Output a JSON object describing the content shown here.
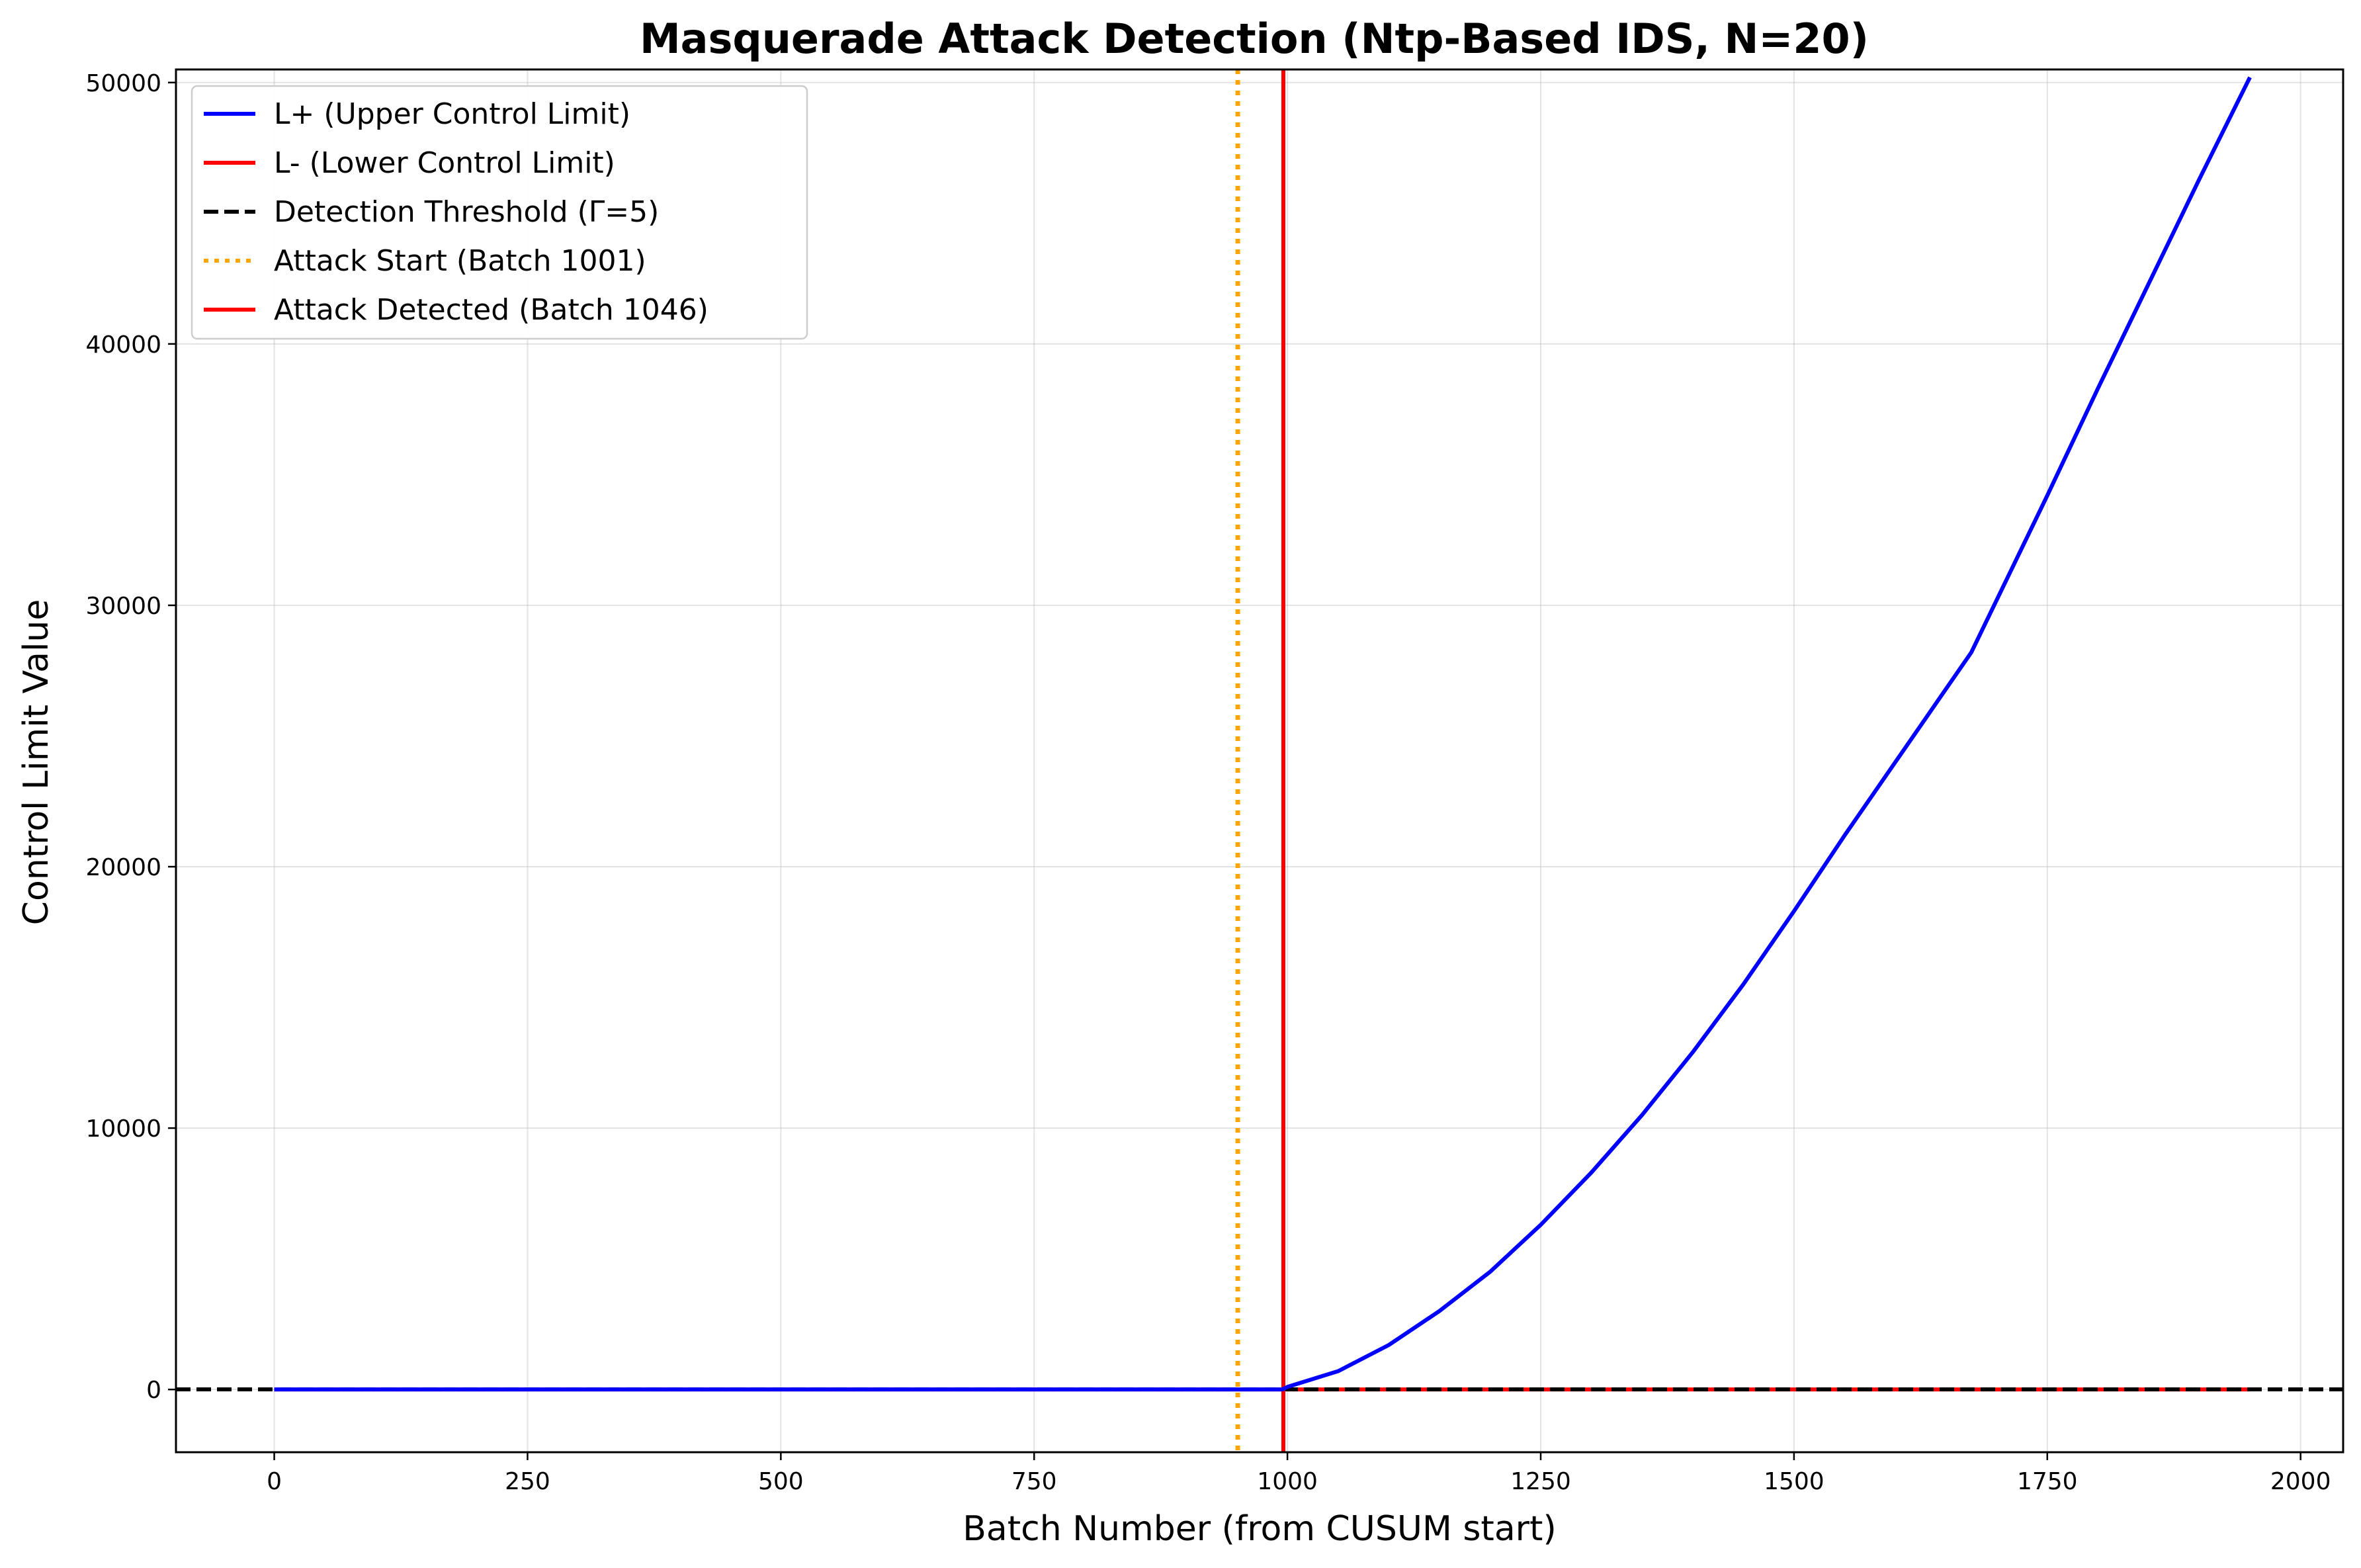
{
  "chart_data": {
    "type": "line",
    "title": "Masquerade Attack Detection (Ntp-Based IDS, N=20)",
    "xlabel": "Batch Number (from CUSUM start)",
    "ylabel": "Control Limit Value",
    "xlim": [
      -97,
      2042
    ],
    "ylim": [
      -2400,
      50500
    ],
    "xticks": [
      0,
      250,
      500,
      750,
      1000,
      1250,
      1500,
      1750,
      2000
    ],
    "yticks": [
      0,
      10000,
      20000,
      30000,
      40000,
      50000
    ],
    "xtick_labels": [
      "0",
      "250",
      "500",
      "750",
      "1000",
      "1250",
      "1500",
      "1750",
      "2000"
    ],
    "ytick_labels": [
      "0",
      "10000",
      "20000",
      "30000",
      "40000",
      "50000"
    ],
    "grid": true,
    "legend_position": "upper-left",
    "series": [
      {
        "name": "L+ (Upper Control Limit)",
        "color": "#0000ff",
        "style": "solid",
        "x": [
          0,
          995,
          1000,
          1050,
          1100,
          1150,
          1200,
          1250,
          1300,
          1350,
          1400,
          1450,
          1500,
          1550,
          1600,
          1650,
          1675,
          1700,
          1750,
          1800,
          1850,
          1900,
          1950
        ],
        "y": [
          0,
          0,
          100,
          700,
          1700,
          3000,
          4500,
          6300,
          8300,
          10500,
          12900,
          15500,
          18300,
          21200,
          24000,
          26800,
          28200,
          30200,
          34200,
          38300,
          42300,
          46300,
          50200
        ]
      },
      {
        "name": "L- (Lower Control Limit)",
        "color": "#ff0000",
        "style": "solid",
        "x": [
          0,
          1950
        ],
        "y": [
          0,
          0
        ]
      }
    ],
    "reference_lines": [
      {
        "name": "Detection Threshold (Γ=5)",
        "orientation": "horizontal",
        "value": 5,
        "color": "#000000",
        "style": "dashed"
      },
      {
        "name": "Attack Start (Batch 1001)",
        "orientation": "vertical",
        "value": 951,
        "color": "#ffa500",
        "style": "dotted"
      },
      {
        "name": "Attack Detected (Batch 1046)",
        "orientation": "vertical",
        "value": 996,
        "color": "#ff0000",
        "style": "solid"
      }
    ],
    "legend": [
      {
        "label": "L+ (Upper Control Limit)",
        "color": "#0000ff",
        "style": "solid"
      },
      {
        "label": "L- (Lower Control Limit)",
        "color": "#ff0000",
        "style": "solid"
      },
      {
        "label": "Detection Threshold (Γ=5)",
        "color": "#000000",
        "style": "dashed"
      },
      {
        "label": "Attack Start (Batch 1001)",
        "color": "#ffa500",
        "style": "dotted"
      },
      {
        "label": "Attack Detected (Batch 1046)",
        "color": "#ff0000",
        "style": "solid"
      }
    ]
  }
}
